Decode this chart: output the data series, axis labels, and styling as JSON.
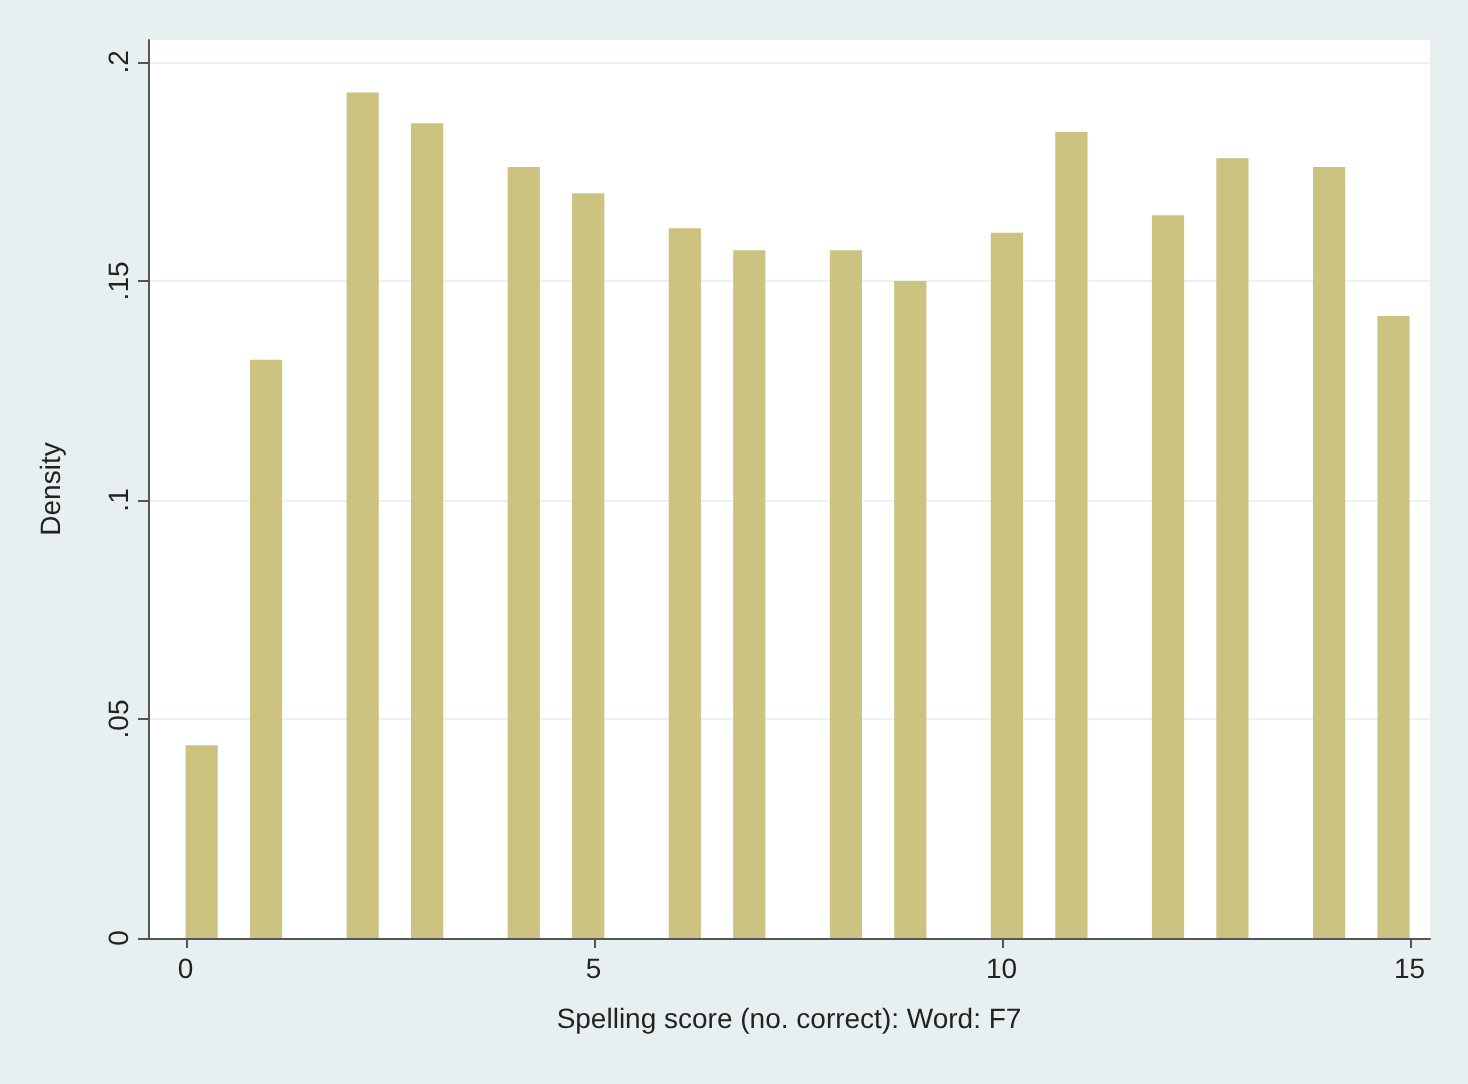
{
  "chart_data": {
    "type": "histogram",
    "xlabel": "Spelling score (no. correct): Word: F7",
    "ylabel": "Density",
    "color": "#cbc37f",
    "bins": [
      0,
      0.395,
      0.789,
      1.184,
      1.579,
      1.974,
      2.368,
      2.763,
      3.158,
      3.553,
      3.947,
      4.342,
      4.737,
      5.132,
      5.526,
      5.921,
      6.316,
      6.711,
      7.105,
      7.5,
      7.895,
      8.289,
      8.684,
      9.079,
      9.474,
      9.868,
      10.263,
      10.658,
      11.053,
      11.447,
      11.842,
      12.237,
      12.632,
      13.026,
      13.421,
      13.816,
      14.211,
      14.605,
      15
    ],
    "values": [
      0.044,
      0,
      0.132,
      0,
      0,
      0.193,
      0,
      0.186,
      0,
      0,
      0.176,
      0,
      0.17,
      0,
      0,
      0.162,
      0,
      0.157,
      0,
      0,
      0.157,
      0,
      0.15,
      0,
      0,
      0.161,
      0,
      0.184,
      0,
      0,
      0.165,
      0,
      0.178,
      0,
      0,
      0.176,
      0,
      0.142
    ],
    "xlim": [
      -0.46,
      15.25
    ],
    "xticks": [
      0,
      5,
      10,
      15
    ],
    "ylim": [
      0,
      0.205
    ],
    "yticks": [
      {
        "value": 0,
        "label": "0"
      },
      {
        "value": 0.05,
        "label": ".05"
      },
      {
        "value": 0.1,
        "label": ".1"
      },
      {
        "value": 0.15,
        "label": ".15"
      },
      {
        "value": 0.2,
        "label": ".2"
      }
    ],
    "grid": "y"
  }
}
